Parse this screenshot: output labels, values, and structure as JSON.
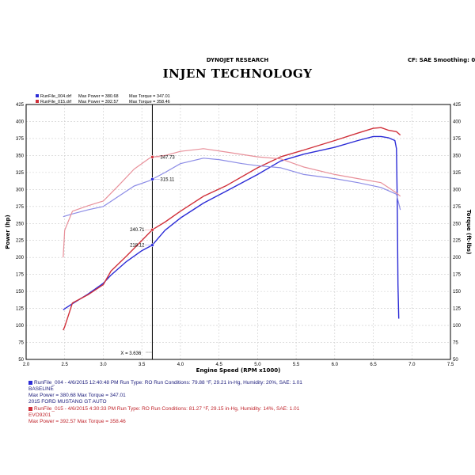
{
  "header": {
    "center": "DYNOJET RESEARCH",
    "right": "CF: SAE  Smoothing: 0",
    "brand": "INJEN TECHNOLOGY"
  },
  "colors": {
    "blue": "#2b2bd6",
    "red": "#d0303a",
    "blue_light": "#8c8ce6",
    "red_light": "#e8909a"
  },
  "legend": {
    "blue": {
      "file": "RunFile_004.drf",
      "max_power_label": "Max Power = 380.68",
      "max_torque_label": "Max Torque = 347.01"
    },
    "red": {
      "file": "RunFile_015.drf",
      "max_power_label": "Max Power = 392.57",
      "max_torque_label": "Max Torque = 358.46"
    }
  },
  "runs": [
    {
      "color": "blue",
      "line1": "RunFile_004 - 4/6/2015 12:40:48 PM  Run Type: RO  Run Conditions: 79.88 °F, 29.21 in-Hg,  Humidity:  20%, SAE: 1.01",
      "line2": "BASELINE",
      "line3": "Max Power = 380.68  Max Torque = 347.01",
      "line4": "2015 FORD MUSTANG GT AUTO"
    },
    {
      "color": "red",
      "line1": "RunFile_015 - 4/6/2015 4:30:33 PM  Run Type: RO  Run Conditions: 81.27 °F, 29.15 in-Hg,  Humidity:  14%, SAE: 1.01",
      "line2": "EVO9201",
      "line3": "Max Power = 392.57  Max Torque = 358.46"
    }
  ],
  "chart_data": {
    "type": "line",
    "xlabel": "Engine Speed (RPM x1000)",
    "ylabel_left": "Power (hp)",
    "ylabel_right": "Torque (ft-lbs)",
    "x_ticks": [
      "2.0",
      "2.5",
      "3.0",
      "3.5",
      "4.0",
      "4.5",
      "5.0",
      "5.5",
      "6.0",
      "6.5",
      "7.0",
      "7.5"
    ],
    "y_ticks": [
      "50",
      "75",
      "100",
      "125",
      "150",
      "175",
      "200",
      "225",
      "250",
      "275",
      "300",
      "325",
      "350",
      "375",
      "400",
      "425"
    ],
    "xlim": [
      2.0,
      7.5
    ],
    "ylim": [
      50,
      425
    ],
    "grid": true,
    "legend_position": "top-left",
    "cursor": {
      "x": 3.636,
      "label": "X = 3.636"
    },
    "markers": [
      {
        "series": "red",
        "x": 3.636,
        "y": 347.73,
        "label": "347.73"
      },
      {
        "series": "blue",
        "x": 3.636,
        "y": 315.11,
        "label": "315.11"
      },
      {
        "series": "red",
        "x": 3.636,
        "y": 240.71,
        "label": "240.71"
      },
      {
        "series": "blue",
        "x": 3.636,
        "y": 218.12,
        "label": "218.12"
      }
    ],
    "series": [
      {
        "name": "RunFile_004.drf",
        "quantity": "power",
        "color": "#2b2bd6",
        "x": [
          2.48,
          2.6,
          2.8,
          3.0,
          3.1,
          3.3,
          3.5,
          3.636,
          3.8,
          4.0,
          4.3,
          4.6,
          5.0,
          5.3,
          5.6,
          6.0,
          6.3,
          6.5,
          6.6,
          6.7,
          6.78,
          6.8,
          6.81,
          6.82,
          6.83
        ],
        "y": [
          123,
          132,
          146,
          162,
          174,
          194,
          210,
          218.12,
          240,
          258,
          280,
          298,
          322,
          342,
          352,
          362,
          372,
          378,
          378,
          376,
          372,
          360,
          280,
          160,
          110
        ]
      },
      {
        "name": "RunFile_015.drf",
        "quantity": "power",
        "color": "#d0303a",
        "x": [
          2.48,
          2.5,
          2.6,
          2.8,
          3.0,
          3.1,
          3.3,
          3.5,
          3.636,
          3.8,
          4.0,
          4.3,
          4.6,
          5.0,
          5.3,
          5.6,
          6.0,
          6.3,
          6.5,
          6.6,
          6.7,
          6.8,
          6.85
        ],
        "y": [
          93,
          98,
          133,
          145,
          160,
          180,
          202,
          225,
          240.71,
          252,
          268,
          290,
          306,
          332,
          348,
          358,
          372,
          383,
          390,
          391,
          387,
          385,
          380
        ]
      },
      {
        "name": "RunFile_004.drf",
        "quantity": "torque",
        "color": "#8c8ce6",
        "x": [
          2.48,
          2.6,
          2.8,
          3.0,
          3.2,
          3.4,
          3.6,
          3.636,
          3.8,
          4.0,
          4.3,
          4.5,
          4.8,
          5.0,
          5.3,
          5.6,
          6.0,
          6.3,
          6.6,
          6.8,
          6.85
        ],
        "y": [
          260,
          264,
          270,
          275,
          290,
          305,
          313,
          315.11,
          325,
          338,
          346,
          344,
          338,
          335,
          332,
          322,
          316,
          310,
          303,
          293,
          270
        ]
      },
      {
        "name": "RunFile_015.drf",
        "quantity": "torque",
        "color": "#e8909a",
        "x": [
          2.48,
          2.5,
          2.6,
          2.8,
          3.0,
          3.2,
          3.4,
          3.6,
          3.636,
          3.8,
          4.0,
          4.3,
          4.6,
          5.0,
          5.3,
          5.6,
          6.0,
          6.3,
          6.6,
          6.8,
          6.85
        ],
        "y": [
          200,
          240,
          268,
          276,
          283,
          306,
          330,
          346,
          347.73,
          350,
          356,
          360,
          355,
          348,
          345,
          333,
          322,
          316,
          310,
          295,
          290
        ]
      }
    ]
  }
}
